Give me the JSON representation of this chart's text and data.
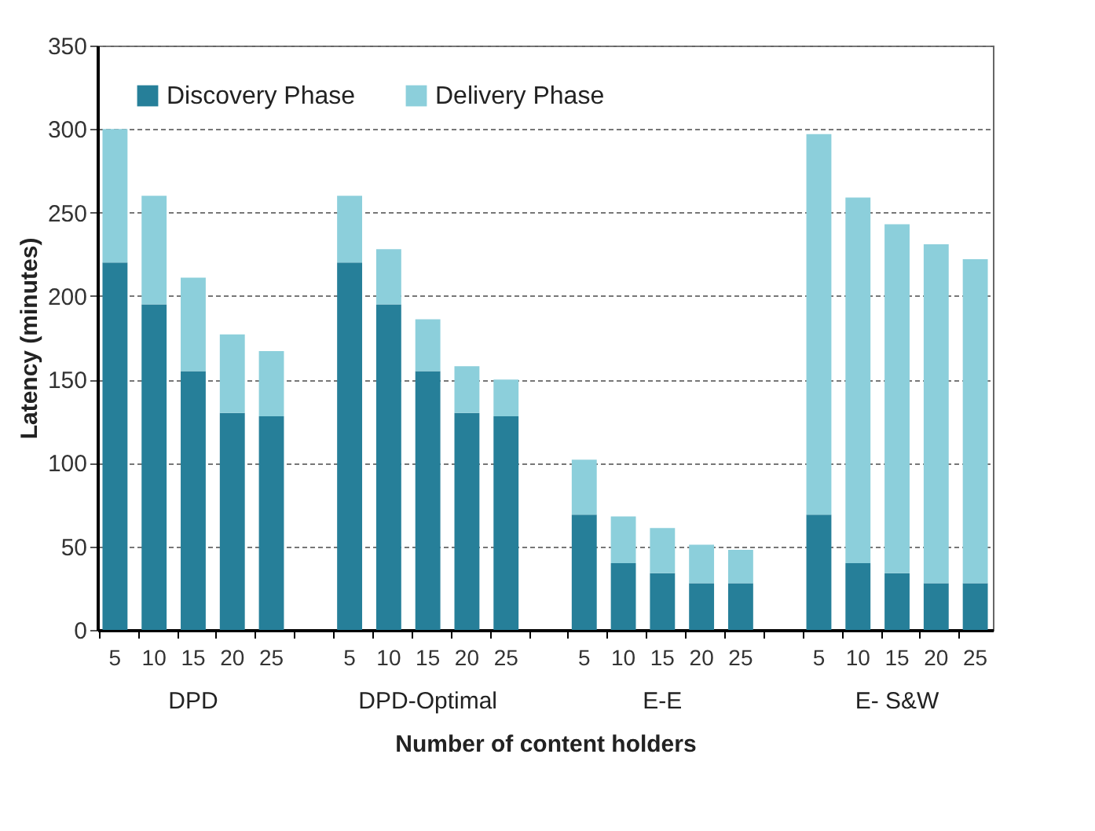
{
  "chart_data": {
    "type": "bar",
    "stacked": true,
    "xlabel": "Number of content holders",
    "ylabel": "Latency (minutes)",
    "categories": [
      "5",
      "10",
      "15",
      "20",
      "25",
      null,
      "5",
      "10",
      "15",
      "20",
      "25",
      null,
      "5",
      "10",
      "15",
      "20",
      "25",
      null,
      "5",
      "10",
      "15",
      "20",
      "25"
    ],
    "series": [
      {
        "name": "Discovery Phase",
        "color": "#267f99",
        "values": [
          220,
          195,
          155,
          130,
          128,
          null,
          220,
          195,
          155,
          130,
          128,
          null,
          69,
          40,
          34,
          28,
          28,
          null,
          69,
          40,
          34,
          28,
          28
        ]
      },
      {
        "name": "Delivery Phase",
        "color": "#8ccfdb",
        "values": [
          80,
          65,
          56,
          47,
          39,
          null,
          40,
          33,
          31,
          28,
          22,
          null,
          33,
          28,
          27,
          23,
          20,
          null,
          228,
          219,
          209,
          203,
          194
        ]
      }
    ],
    "annotations": [
      "DPD",
      "DPD-Optimal",
      "E-E",
      "E- S&W"
    ],
    "ylim": [
      0,
      350
    ],
    "yticks": [
      0,
      50,
      100,
      150,
      200,
      250,
      300,
      350
    ],
    "grid": "y",
    "legend": "top left"
  }
}
